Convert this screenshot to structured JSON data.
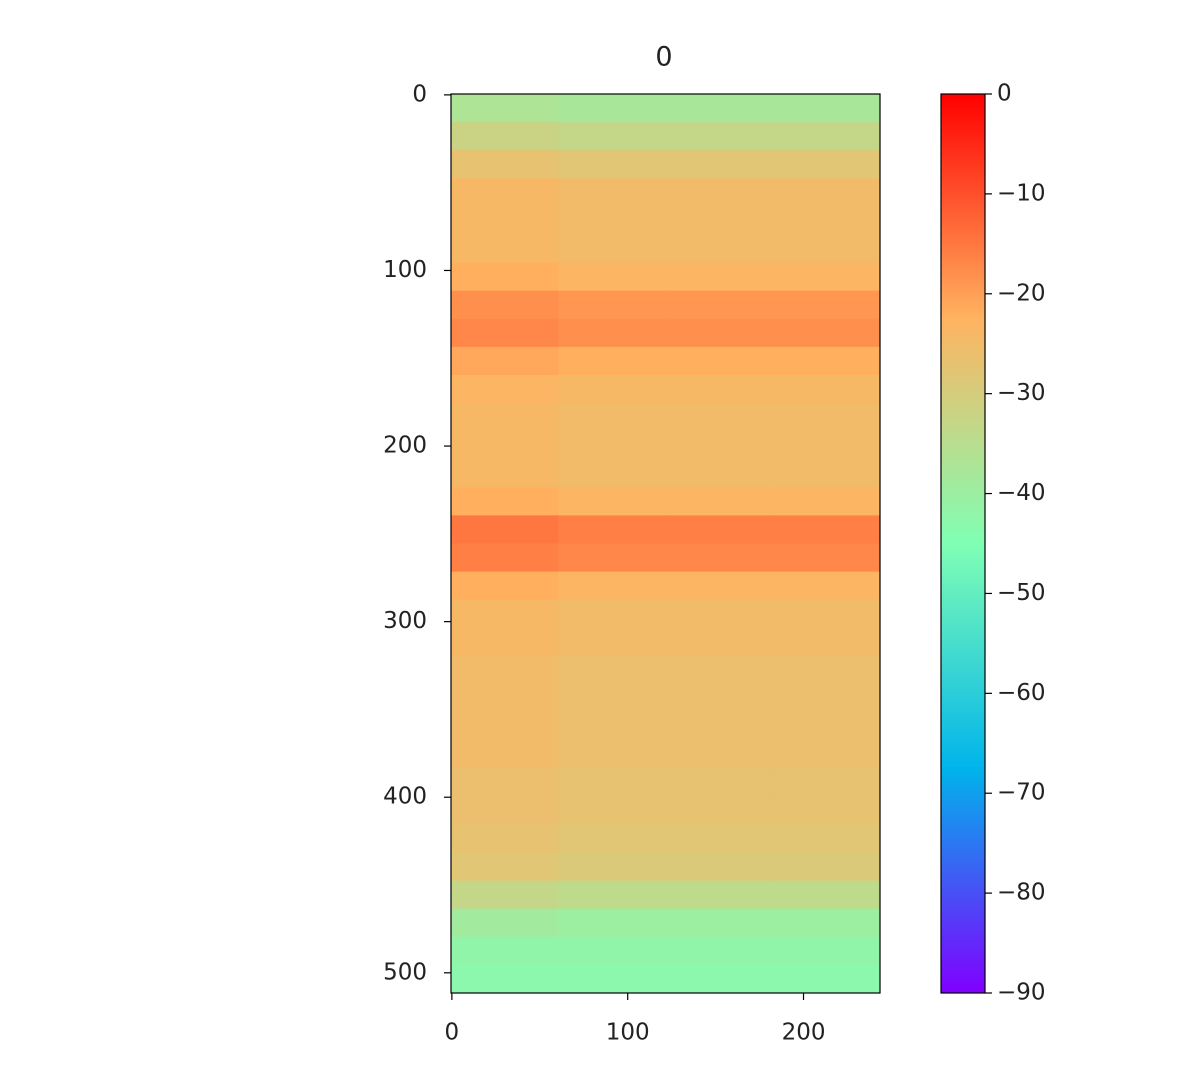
{
  "chart_data": {
    "type": "heatmap",
    "title": "0",
    "xbins": [
      -0.5,
      60.5,
      121.5,
      182.5,
      243.5
    ],
    "ybins": [
      -0.5,
      15.5,
      31.5,
      47.5,
      63.5,
      79.5,
      95.5,
      111.5,
      127.5,
      143.5,
      159.5,
      175.5,
      191.5,
      207.5,
      223.5,
      239.5,
      255.5,
      271.5,
      287.5,
      303.5,
      319.5,
      335.5,
      351.5,
      367.5,
      383.5,
      399.5,
      415.5,
      431.5,
      447.5,
      463.5,
      479.5,
      495.5,
      511.5
    ],
    "values": [
      [
        -37,
        -38,
        -38,
        -38
      ],
      [
        -32,
        -33,
        -33,
        -33
      ],
      [
        -27,
        -28,
        -28,
        -28
      ],
      [
        -24,
        -25,
        -25,
        -25
      ],
      [
        -24,
        -25,
        -25,
        -25
      ],
      [
        -24,
        -25,
        -25,
        -25
      ],
      [
        -22,
        -23,
        -23,
        -23
      ],
      [
        -18,
        -19,
        -19,
        -19
      ],
      [
        -17,
        -18,
        -18,
        -18
      ],
      [
        -21,
        -22,
        -22,
        -22
      ],
      [
        -23,
        -24,
        -24,
        -24
      ],
      [
        -24,
        -25,
        -25,
        -25
      ],
      [
        -24,
        -25,
        -25,
        -25
      ],
      [
        -24,
        -25,
        -25,
        -25
      ],
      [
        -22,
        -23,
        -23,
        -23
      ],
      [
        -15,
        -16,
        -16,
        -16
      ],
      [
        -16,
        -17,
        -17,
        -17
      ],
      [
        -22,
        -23,
        -23,
        -23
      ],
      [
        -24,
        -25,
        -25,
        -25
      ],
      [
        -24,
        -25,
        -25,
        -25
      ],
      [
        -25,
        -26,
        -26,
        -26
      ],
      [
        -25,
        -26,
        -26,
        -26
      ],
      [
        -25,
        -26,
        -26,
        -26
      ],
      [
        -25,
        -26,
        -26,
        -26
      ],
      [
        -26,
        -27,
        -27,
        -27
      ],
      [
        -26,
        -27,
        -27,
        -27
      ],
      [
        -27,
        -28,
        -28,
        -28
      ],
      [
        -28,
        -29,
        -29,
        -29
      ],
      [
        -33,
        -34,
        -34,
        -34
      ],
      [
        -39,
        -40,
        -40,
        -40
      ],
      [
        -42,
        -42,
        -42,
        -42
      ],
      [
        -43,
        -43,
        -43,
        -43
      ]
    ],
    "xlim": [
      -0.5,
      243.5
    ],
    "xticks": [
      0,
      100,
      200
    ],
    "ylim": [
      511.5,
      -0.5
    ],
    "yticks": [
      0,
      100,
      200,
      300,
      400,
      500
    ],
    "colorbar": {
      "lim": [
        -90,
        0
      ],
      "ticks": [
        0,
        -10,
        -20,
        -30,
        -40,
        -50,
        -60,
        -70,
        -80,
        -90
      ],
      "colors": [
        "#8000ff",
        "#00b4eb",
        "#80ffb4",
        "#ffb360",
        "#ff0000"
      ]
    }
  }
}
